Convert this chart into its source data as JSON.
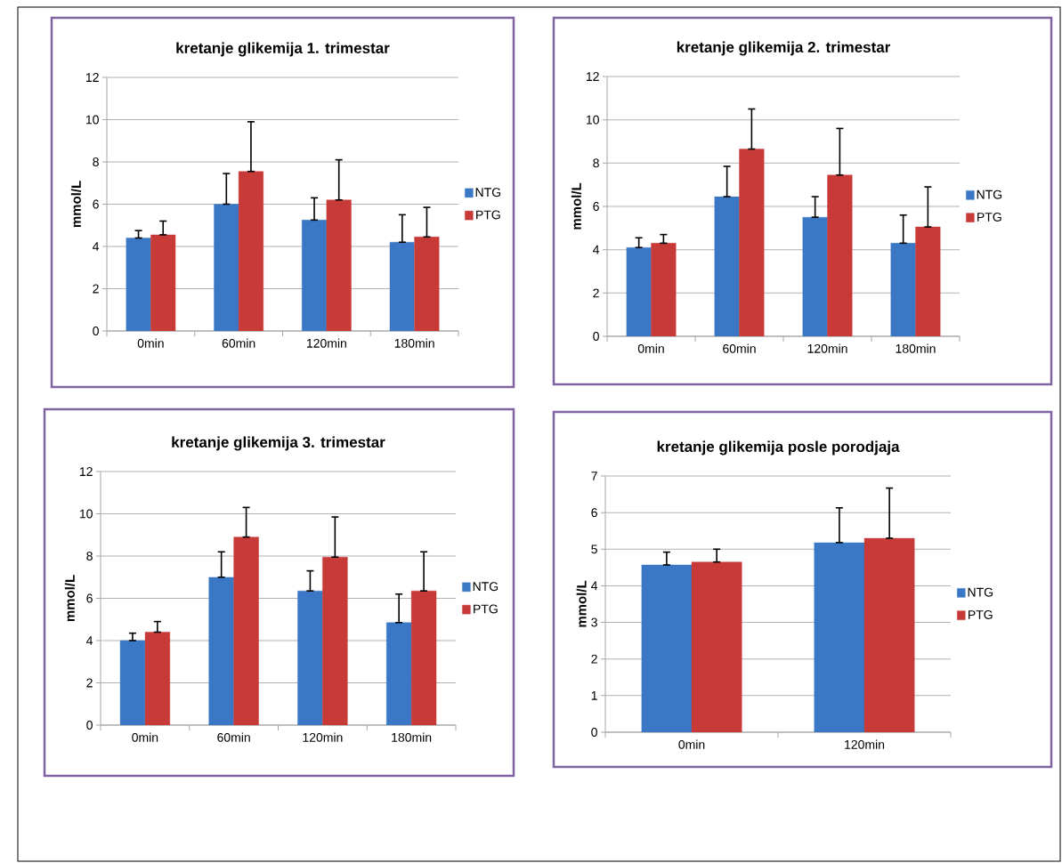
{
  "chart_data": [
    {
      "type": "bar",
      "title": "kretanje glikemija 1. trimestar",
      "ylabel": "mmol/L",
      "categories": [
        "0min",
        "60min",
        "120min",
        "180min"
      ],
      "series": [
        {
          "name": "NTG",
          "color": "#3a78c6",
          "values": [
            4.4,
            6.0,
            5.25,
            4.2
          ],
          "errors": [
            [
              4.4,
              4.75
            ],
            [
              6.0,
              7.45
            ],
            [
              5.25,
              6.3
            ],
            [
              4.2,
              5.5
            ]
          ]
        },
        {
          "name": "PTG",
          "color": "#c83a38",
          "values": [
            4.55,
            7.55,
            6.2,
            4.45
          ],
          "errors": [
            [
              4.55,
              5.2
            ],
            [
              7.55,
              9.9
            ],
            [
              6.2,
              8.1
            ],
            [
              4.45,
              5.85
            ]
          ]
        }
      ],
      "ylim": [
        0,
        12
      ],
      "yticks": [
        0,
        2,
        4,
        6,
        8,
        10,
        12
      ],
      "grid": "y",
      "legend": "right"
    },
    {
      "type": "bar",
      "title": "kretanje glikemija 2. trimestar",
      "ylabel": "mmol/L",
      "categories": [
        "0min",
        "60min",
        "120min",
        "180min"
      ],
      "series": [
        {
          "name": "NTG",
          "color": "#3a78c6",
          "values": [
            4.1,
            6.45,
            5.5,
            4.3
          ],
          "errors": [
            [
              4.1,
              4.55
            ],
            [
              6.45,
              7.85
            ],
            [
              5.5,
              6.45
            ],
            [
              4.3,
              5.6
            ]
          ]
        },
        {
          "name": "PTG",
          "color": "#c83a38",
          "values": [
            4.3,
            8.65,
            7.45,
            5.05
          ],
          "errors": [
            [
              4.3,
              4.7
            ],
            [
              8.65,
              10.5
            ],
            [
              7.45,
              9.6
            ],
            [
              5.05,
              6.9
            ]
          ]
        }
      ],
      "ylim": [
        0,
        12
      ],
      "yticks": [
        0,
        2,
        4,
        6,
        8,
        10,
        12
      ],
      "grid": "y",
      "legend": "right"
    },
    {
      "type": "bar",
      "title": "kretanje glikemija 3. trimestar",
      "ylabel": "mmol/L",
      "categories": [
        "0min",
        "60min",
        "120min",
        "180min"
      ],
      "series": [
        {
          "name": "NTG",
          "color": "#3a78c6",
          "values": [
            4.0,
            7.0,
            6.35,
            4.85
          ],
          "errors": [
            [
              4.0,
              4.35
            ],
            [
              7.0,
              8.2
            ],
            [
              6.35,
              7.3
            ],
            [
              4.85,
              6.2
            ]
          ]
        },
        {
          "name": "PTG",
          "color": "#c83a38",
          "values": [
            4.4,
            8.9,
            7.95,
            6.35
          ],
          "errors": [
            [
              4.4,
              4.9
            ],
            [
              8.9,
              10.3
            ],
            [
              7.95,
              9.85
            ],
            [
              6.35,
              8.2
            ]
          ]
        }
      ],
      "ylim": [
        0,
        12
      ],
      "yticks": [
        0,
        2,
        4,
        6,
        8,
        10,
        12
      ],
      "grid": "y",
      "legend": "right"
    },
    {
      "type": "bar",
      "title": "kretanje glikemija posle porodjaja",
      "ylabel": "mmol/L",
      "categories": [
        "0min",
        "120min"
      ],
      "series": [
        {
          "name": "NTG",
          "color": "#3a78c6",
          "values": [
            4.57,
            5.18
          ],
          "errors": [
            [
              4.57,
              4.92
            ],
            [
              5.18,
              6.13
            ]
          ]
        },
        {
          "name": "PTG",
          "color": "#c83a38",
          "values": [
            4.65,
            5.3
          ],
          "errors": [
            [
              4.65,
              5.0
            ],
            [
              5.3,
              6.67
            ]
          ]
        }
      ],
      "ylim": [
        0,
        7
      ],
      "yticks": [
        0,
        1,
        2,
        3,
        4,
        5,
        6,
        7
      ],
      "grid": "y",
      "legend": "right"
    }
  ]
}
